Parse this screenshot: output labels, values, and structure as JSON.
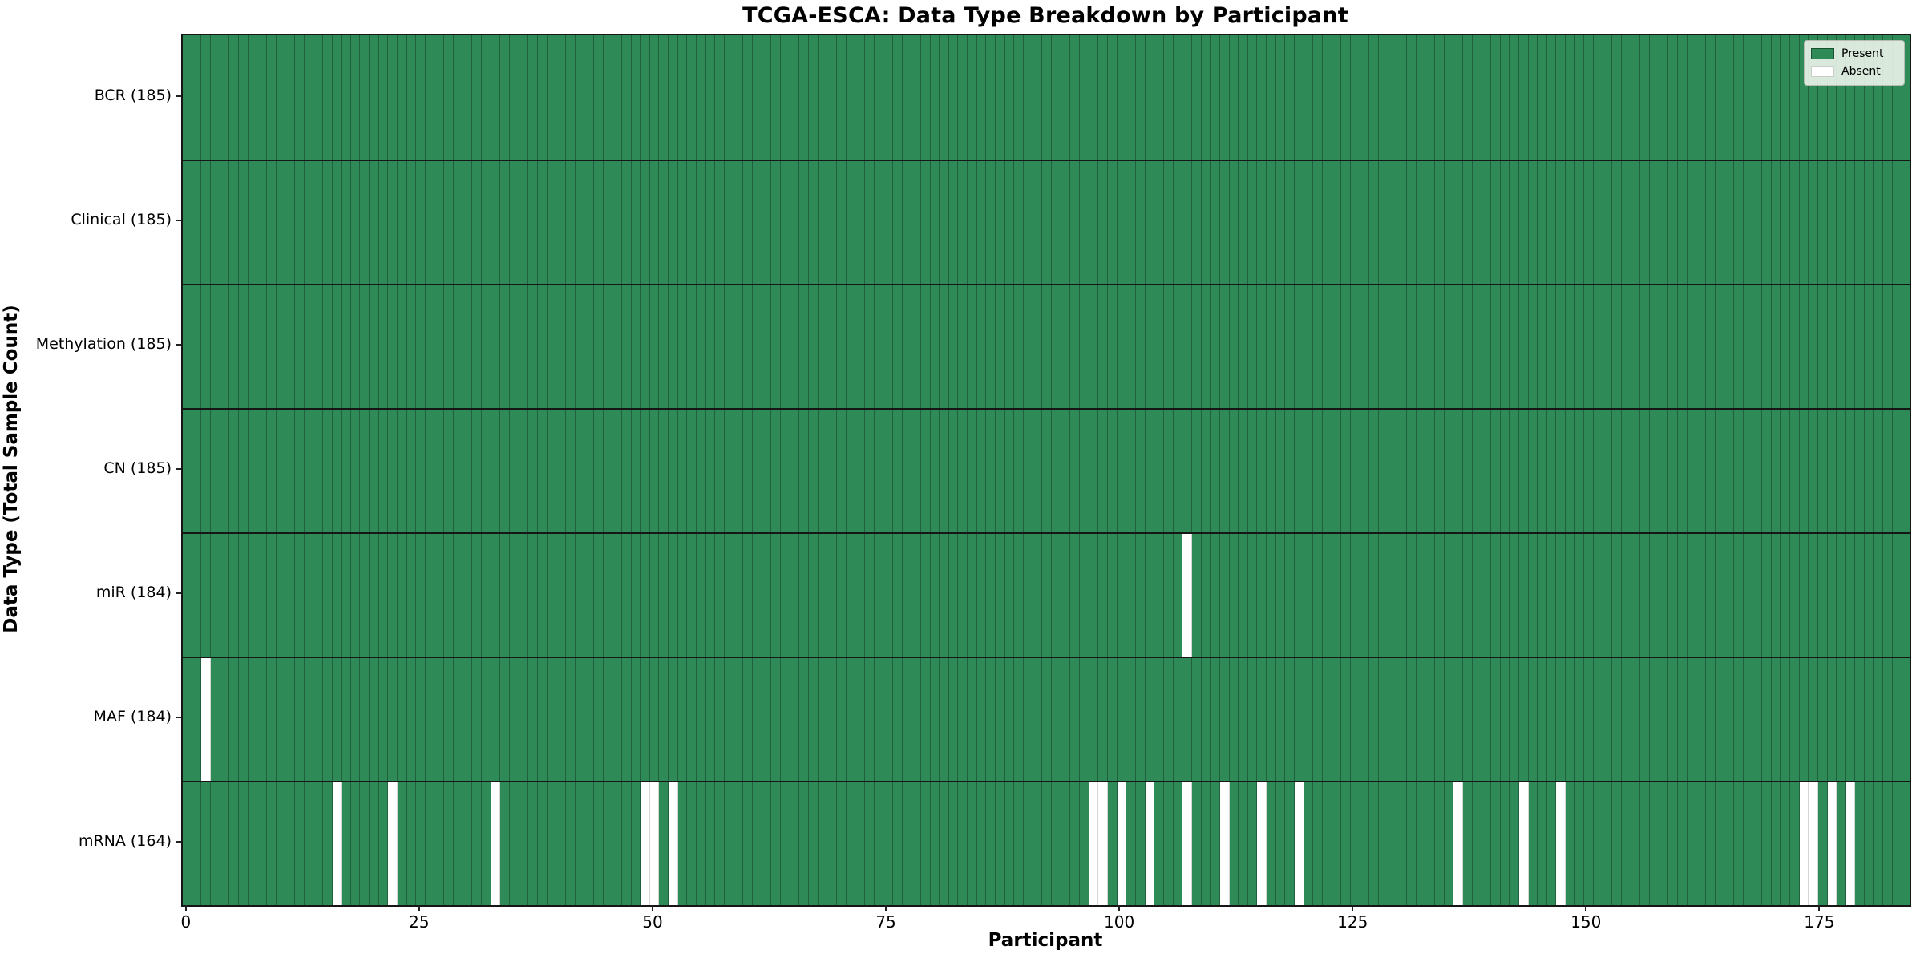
{
  "title": "TCGA-ESCA: Data Type Breakdown by Participant",
  "x_axis": {
    "label": "Participant",
    "ticks": [
      0,
      25,
      50,
      75,
      100,
      125,
      150,
      175
    ]
  },
  "y_axis": {
    "label": "Data Type (Total Sample Count)"
  },
  "legend": {
    "items": [
      {
        "label": "Present",
        "color": "#2e8b57"
      },
      {
        "label": "Absent",
        "color": "#ffffff"
      }
    ]
  },
  "colors": {
    "present": "#2e8b57",
    "present_edge": "#20603f",
    "absent": "#ffffff",
    "row_separator": "#161616"
  },
  "chart_data": {
    "type": "heatmap",
    "title": "TCGA-ESCA: Data Type Breakdown by Participant",
    "xlabel": "Participant",
    "ylabel": "Data Type (Total Sample Count)",
    "n_participants": 185,
    "x_range": [
      0,
      184
    ],
    "legend_position": "upper right",
    "grid": "column-edges",
    "rows": [
      {
        "label": "BCR (185)",
        "data_type": "BCR",
        "total_sample_count": 185,
        "absent_participants": []
      },
      {
        "label": "Clinical (185)",
        "data_type": "Clinical",
        "total_sample_count": 185,
        "absent_participants": []
      },
      {
        "label": "Methylation (185)",
        "data_type": "Methylation",
        "total_sample_count": 185,
        "absent_participants": []
      },
      {
        "label": "CN (185)",
        "data_type": "CN",
        "total_sample_count": 185,
        "absent_participants": []
      },
      {
        "label": "miR (184)",
        "data_type": "miR",
        "total_sample_count": 184,
        "absent_participants": [
          107
        ]
      },
      {
        "label": "MAF (184)",
        "data_type": "MAF",
        "total_sample_count": 184,
        "absent_participants": [
          2
        ]
      },
      {
        "label": "mRNA (164)",
        "data_type": "mRNA",
        "total_sample_count": 164,
        "absent_participants": [
          16,
          22,
          33,
          49,
          50,
          52,
          97,
          98,
          100,
          103,
          107,
          111,
          115,
          119,
          136,
          143,
          147,
          173,
          174,
          176,
          178
        ]
      }
    ]
  }
}
